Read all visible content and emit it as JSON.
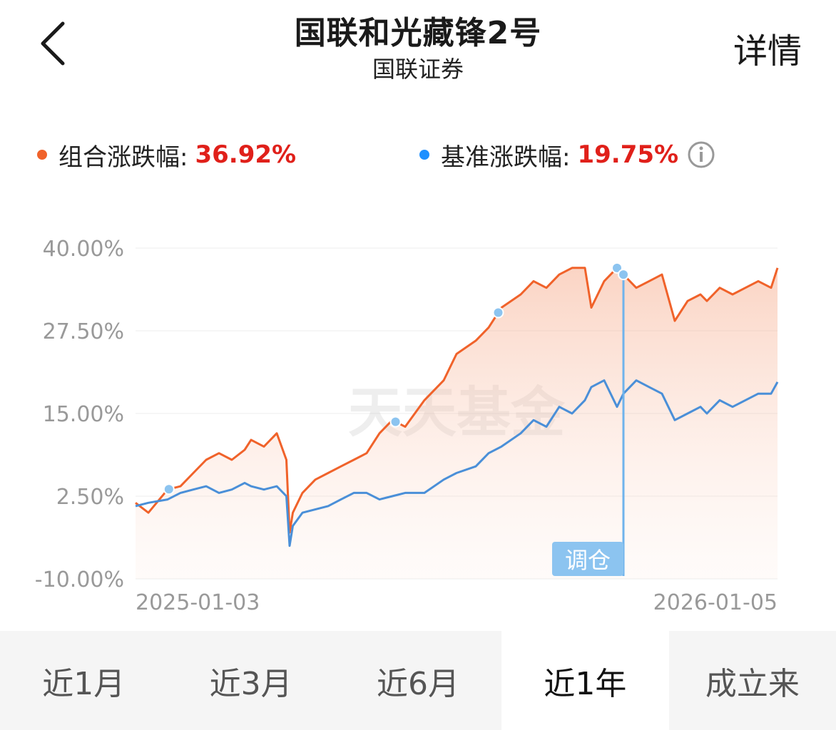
{
  "header": {
    "title": "国联和光藏锋2号",
    "subtitle": "国联证券",
    "detail_label": "详情",
    "back_icon": "chevron-left-icon"
  },
  "legend": {
    "portfolio": {
      "label": "组合涨跌幅:",
      "value": "36.92%",
      "color": "#f0622a"
    },
    "benchmark": {
      "label": "基准涨跌幅:",
      "value": "19.75%",
      "color": "#1e90ff"
    },
    "info_icon": "info-icon",
    "value_color": "#e0201a"
  },
  "watermark": "天天基金",
  "chart_data": {
    "type": "line",
    "y_ticks": [
      "40.00%",
      "27.50%",
      "15.00%",
      "2.50%",
      "-10.00%"
    ],
    "ylim": [
      -10,
      40
    ],
    "x_labels": {
      "start": "2025-01-03",
      "end": "2026-01-05"
    },
    "series": [
      {
        "key": "portfolio",
        "color": "#f0622a",
        "x": [
          0,
          0.02,
          0.05,
          0.07,
          0.09,
          0.11,
          0.13,
          0.15,
          0.17,
          0.18,
          0.2,
          0.22,
          0.235,
          0.24,
          0.245,
          0.26,
          0.28,
          0.3,
          0.32,
          0.34,
          0.36,
          0.38,
          0.4,
          0.42,
          0.45,
          0.48,
          0.5,
          0.53,
          0.55,
          0.57,
          0.6,
          0.62,
          0.64,
          0.66,
          0.68,
          0.7,
          0.71,
          0.73,
          0.75,
          0.76,
          0.77,
          0.78,
          0.8,
          0.82,
          0.84,
          0.86,
          0.88,
          0.89,
          0.9,
          0.91,
          0.93,
          0.95,
          0.97,
          0.99,
          1.0
        ],
        "y": [
          1.5,
          0,
          3.5,
          4,
          6,
          8,
          9,
          8,
          9.5,
          11,
          10,
          12,
          8,
          -3,
          0,
          3,
          5,
          6,
          7,
          8,
          9,
          12,
          14,
          13,
          17,
          20,
          24,
          26,
          28,
          31,
          33,
          35,
          34,
          36,
          37,
          37,
          31,
          35,
          37,
          36,
          35,
          34,
          35,
          36,
          29,
          32,
          33,
          32,
          33,
          34,
          33,
          34,
          35,
          34,
          37
        ]
      },
      {
        "key": "benchmark",
        "color": "#4a8fd8",
        "x": [
          0,
          0.02,
          0.05,
          0.07,
          0.09,
          0.11,
          0.13,
          0.15,
          0.17,
          0.18,
          0.2,
          0.22,
          0.235,
          0.24,
          0.245,
          0.26,
          0.28,
          0.3,
          0.32,
          0.34,
          0.36,
          0.38,
          0.4,
          0.42,
          0.45,
          0.48,
          0.5,
          0.53,
          0.55,
          0.57,
          0.6,
          0.62,
          0.64,
          0.66,
          0.68,
          0.7,
          0.71,
          0.73,
          0.75,
          0.76,
          0.77,
          0.78,
          0.8,
          0.82,
          0.84,
          0.86,
          0.88,
          0.89,
          0.9,
          0.91,
          0.93,
          0.95,
          0.97,
          0.99,
          1.0
        ],
        "y": [
          1,
          1.5,
          2,
          3,
          3.5,
          4,
          3,
          3.5,
          4.5,
          4,
          3.5,
          4,
          2.5,
          -5,
          -2,
          0,
          0.5,
          1,
          2,
          3,
          3,
          2,
          2.5,
          3,
          3,
          5,
          6,
          7,
          9,
          10,
          12,
          14,
          13,
          16,
          15,
          17,
          19,
          20,
          16,
          18,
          19,
          20,
          19,
          18,
          14,
          15,
          16,
          15,
          16,
          17,
          16,
          17,
          18,
          18,
          19.75
        ]
      }
    ],
    "rebalance_points_x": [
      0.052,
      0.405,
      0.565,
      0.75
    ],
    "rebalance_label": "调仓",
    "rebalance_marker_x": 0.76,
    "grid": true,
    "legend_position": "top"
  },
  "tabs": [
    {
      "label": "近1月",
      "active": false
    },
    {
      "label": "近3月",
      "active": false
    },
    {
      "label": "近6月",
      "active": false
    },
    {
      "label": "近1年",
      "active": true
    },
    {
      "label": "成立来",
      "active": false
    }
  ]
}
